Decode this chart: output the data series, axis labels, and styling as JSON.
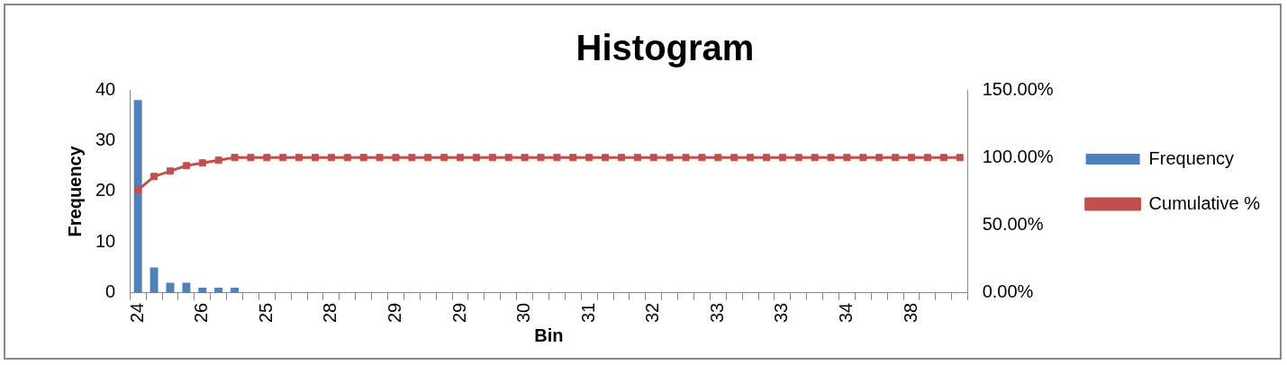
{
  "chart_data": {
    "type": "bar",
    "title": "Histogram",
    "xlabel": "Bin",
    "ylabel": "Frequency",
    "categories": [
      "24",
      null,
      null,
      null,
      "26",
      null,
      null,
      null,
      "25",
      null,
      null,
      null,
      "28",
      null,
      null,
      null,
      "29",
      null,
      null,
      null,
      "29",
      null,
      null,
      null,
      "30",
      null,
      null,
      null,
      "31",
      null,
      null,
      null,
      "32",
      null,
      null,
      null,
      "33",
      null,
      null,
      null,
      "33",
      null,
      null,
      null,
      "34",
      null,
      null,
      null,
      "38",
      null,
      null,
      null
    ],
    "series": [
      {
        "name": "Frequency",
        "type": "bar",
        "color": "#4f81bd",
        "values": [
          38,
          5,
          2,
          2,
          1,
          1,
          1,
          0,
          0,
          0,
          0,
          0,
          0,
          0,
          0,
          0,
          0,
          0,
          0,
          0,
          0,
          0,
          0,
          0,
          0,
          0,
          0,
          0,
          0,
          0,
          0,
          0,
          0,
          0,
          0,
          0,
          0,
          0,
          0,
          0,
          0,
          0,
          0,
          0,
          0,
          0,
          0,
          0,
          0,
          0,
          0,
          0
        ]
      },
      {
        "name": "Cumulative %",
        "type": "line",
        "axis": "y2",
        "color": "#c0504d",
        "values": [
          76,
          86,
          90,
          94,
          96,
          98,
          100,
          100,
          100,
          100,
          100,
          100,
          100,
          100,
          100,
          100,
          100,
          100,
          100,
          100,
          100,
          100,
          100,
          100,
          100,
          100,
          100,
          100,
          100,
          100,
          100,
          100,
          100,
          100,
          100,
          100,
          100,
          100,
          100,
          100,
          100,
          100,
          100,
          100,
          100,
          100,
          100,
          100,
          100,
          100,
          100,
          100
        ]
      }
    ],
    "ylim": [
      0,
      40
    ],
    "yticks": [
      0,
      10,
      20,
      30,
      40
    ],
    "y2lim": [
      0,
      150
    ],
    "y2ticks": [
      {
        "value": 0,
        "label": "0.00%"
      },
      {
        "value": 50,
        "label": "50.00%"
      },
      {
        "value": 100,
        "label": "100.00%"
      },
      {
        "value": 150,
        "label": "150.00%"
      }
    ],
    "grid": false,
    "legend": "right",
    "marker": "square"
  }
}
